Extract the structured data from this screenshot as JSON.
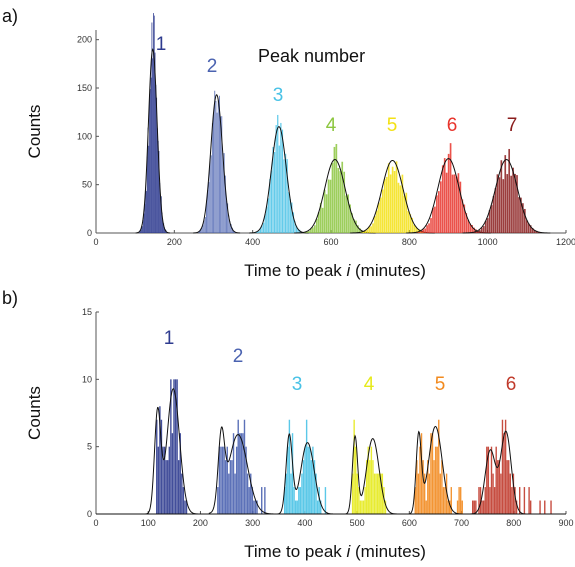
{
  "figure": {
    "panel_a_label": "a)",
    "panel_b_label": "b)"
  },
  "chart_data": [
    {
      "type": "bar",
      "panel": "a)",
      "annotation": "Peak number",
      "xlabel_pre": "Time to peak ",
      "xlabel_var": "i",
      "xlabel_post": " (minutes)",
      "ylabel": "Counts",
      "xlim": [
        0,
        1200
      ],
      "ylim": [
        0,
        210
      ],
      "xticks": [
        0,
        200,
        400,
        600,
        800,
        1000,
        1200
      ],
      "yticks": [
        0,
        50,
        100,
        150,
        200
      ],
      "grid": false,
      "series": [
        {
          "name": "1",
          "color": "#2e3b8f",
          "mean": 145,
          "sd": 11,
          "peak": 190,
          "bin_width": 2
        },
        {
          "name": "2",
          "color": "#4a62b0",
          "mean": 308,
          "sd": 15,
          "peak": 143,
          "bin_width": 3
        },
        {
          "name": "3",
          "color": "#49c2e6",
          "mean": 467,
          "sd": 19,
          "peak": 110,
          "bin_width": 4
        },
        {
          "name": "4",
          "color": "#8cc63f",
          "mean": 610,
          "sd": 26,
          "peak": 76,
          "bin_width": 5
        },
        {
          "name": "5",
          "color": "#f3e114",
          "mean": 757,
          "sd": 27,
          "peak": 75,
          "bin_width": 5
        },
        {
          "name": "6",
          "color": "#e8342c",
          "mean": 900,
          "sd": 27,
          "peak": 77,
          "bin_width": 5
        },
        {
          "name": "7",
          "color": "#8a1c1c",
          "mean": 1048,
          "sd": 28,
          "peak": 76,
          "bin_width": 5
        }
      ]
    },
    {
      "type": "bar",
      "panel": "b)",
      "xlabel_pre": "Time to peak ",
      "xlabel_var": "i",
      "xlabel_post": " (minutes)",
      "ylabel": "Counts",
      "xlim": [
        0,
        900
      ],
      "ylim": [
        0,
        15
      ],
      "xticks": [
        0,
        100,
        200,
        300,
        400,
        500,
        600,
        700,
        800,
        900
      ],
      "yticks": [
        0,
        5,
        10,
        15
      ],
      "grid": false,
      "series": [
        {
          "name": "1",
          "color": "#2e3b8f",
          "x_range": [
            115,
            180
          ],
          "fit": [
            {
              "m": 118,
              "s": 6,
              "a": 7.5
            },
            {
              "m": 148,
              "s": 12,
              "a": 9.3
            }
          ]
        },
        {
          "name": "2",
          "color": "#4a62b0",
          "x_range": [
            232,
            330
          ],
          "fit": [
            {
              "m": 240,
              "s": 6,
              "a": 5.2
            },
            {
              "m": 272,
              "s": 18,
              "a": 5.9
            }
          ]
        },
        {
          "name": "3",
          "color": "#49c2e6",
          "x_range": [
            360,
            440
          ],
          "fit": [
            {
              "m": 370,
              "s": 6,
              "a": 5.8
            },
            {
              "m": 405,
              "s": 13,
              "a": 5.3
            }
          ]
        },
        {
          "name": "4",
          "color": "#e6ea1c",
          "x_range": [
            490,
            570
          ],
          "fit": [
            {
              "m": 496,
              "s": 5,
              "a": 5.7
            },
            {
              "m": 530,
              "s": 12,
              "a": 5.6
            }
          ]
        },
        {
          "name": "5",
          "color": "#f28a1e",
          "x_range": [
            610,
            700
          ],
          "fit": [
            {
              "m": 618,
              "s": 5,
              "a": 5.8
            },
            {
              "m": 650,
              "s": 13,
              "a": 6.5
            }
          ]
        },
        {
          "name": "6",
          "color": "#c03a2b",
          "x_range": [
            720,
            870
          ],
          "fit": [
            {
              "m": 755,
              "s": 10,
              "a": 4.7
            },
            {
              "m": 785,
              "s": 10,
              "a": 6.1
            }
          ]
        }
      ]
    }
  ]
}
